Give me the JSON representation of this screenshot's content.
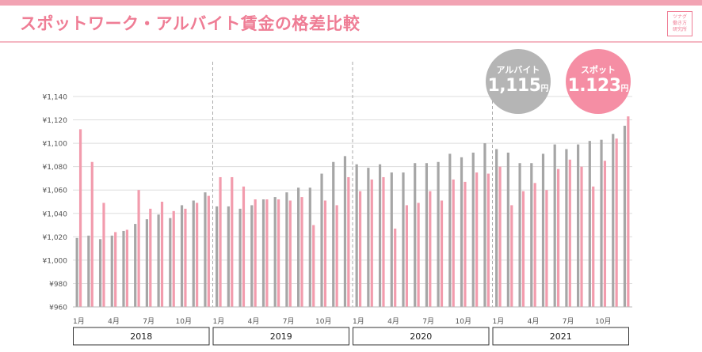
{
  "header": {
    "title": "スポットワーク・アルバイト賃金の格差比較",
    "logo_lines": [
      "ツナグ",
      "働き方",
      "研究所"
    ]
  },
  "badges": {
    "arubaito": {
      "label": "アルバイト",
      "value": "1,115",
      "unit": "円",
      "color": "#b5b5b5"
    },
    "spot": {
      "label": "スポット",
      "value": "1.123",
      "unit": "円",
      "color": "#f58ea4"
    }
  },
  "colors": {
    "accent": "#ef7d95",
    "arubaito": "#a6a6a6",
    "spot": "#f29cad"
  },
  "chart_data": {
    "type": "bar",
    "categories": [
      "2018-01",
      "2018-02",
      "2018-03",
      "2018-04",
      "2018-05",
      "2018-06",
      "2018-07",
      "2018-08",
      "2018-09",
      "2018-10",
      "2018-11",
      "2018-12",
      "2019-01",
      "2019-02",
      "2019-03",
      "2019-04",
      "2019-05",
      "2019-06",
      "2019-07",
      "2019-08",
      "2019-09",
      "2019-10",
      "2019-11",
      "2019-12",
      "2020-01",
      "2020-02",
      "2020-03",
      "2020-04",
      "2020-05",
      "2020-06",
      "2020-07",
      "2020-08",
      "2020-09",
      "2020-10",
      "2020-11",
      "2020-12",
      "2021-01",
      "2021-02",
      "2021-03",
      "2021-04",
      "2021-05",
      "2021-06",
      "2021-07",
      "2021-08",
      "2021-09",
      "2021-10",
      "2021-11",
      "2021-12"
    ],
    "tick_labels": [
      "1月",
      "",
      "",
      "4月",
      "",
      "",
      "7月",
      "",
      "",
      "10月",
      "",
      "",
      "1月",
      "",
      "",
      "4月",
      "",
      "",
      "7月",
      "",
      "",
      "10月",
      "",
      "",
      "1月",
      "",
      "",
      "4月",
      "",
      "",
      "7月",
      "",
      "",
      "10月",
      "",
      "",
      "1月",
      "",
      "",
      "4月",
      "",
      "",
      "7月",
      "",
      "",
      "10月",
      "",
      ""
    ],
    "year_groups": [
      "2018",
      "2019",
      "2020",
      "2021"
    ],
    "series": [
      {
        "name": "アルバイト",
        "values": [
          1019,
          1021,
          1018,
          1021,
          1025,
          1031,
          1035,
          1039,
          1036,
          1047,
          1051,
          1058,
          1046,
          1046,
          1044,
          1047,
          1052,
          1054,
          1058,
          1062,
          1062,
          1074,
          1084,
          1089,
          1082,
          1079,
          1082,
          1075,
          1075,
          1083,
          1083,
          1084,
          1091,
          1088,
          1092,
          1100,
          1095,
          1092,
          1083,
          1083,
          1091,
          1099,
          1095,
          1099,
          1102,
          1103,
          1108,
          1115
        ]
      },
      {
        "name": "スポット",
        "values": [
          1112,
          1084,
          1049,
          1024,
          1026,
          1060,
          1044,
          1050,
          1042,
          1044,
          1049,
          1055,
          1071,
          1071,
          1063,
          1052,
          1052,
          1052,
          1051,
          1054,
          1030,
          1051,
          1047,
          1071,
          1059,
          1069,
          1071,
          1027,
          1047,
          1049,
          1059,
          1051,
          1069,
          1067,
          1075,
          1074,
          1080,
          1047,
          1059,
          1066,
          1060,
          1078,
          1086,
          1080,
          1063,
          1085,
          1104,
          1123
        ]
      }
    ],
    "yticks": [
      "¥960",
      "¥980",
      "¥1,000",
      "¥1,020",
      "¥1,040",
      "¥1,060",
      "¥1,080",
      "¥1,100",
      "¥1,120",
      "¥1,140"
    ],
    "ylim": [
      960,
      1140
    ],
    "grid": true
  }
}
